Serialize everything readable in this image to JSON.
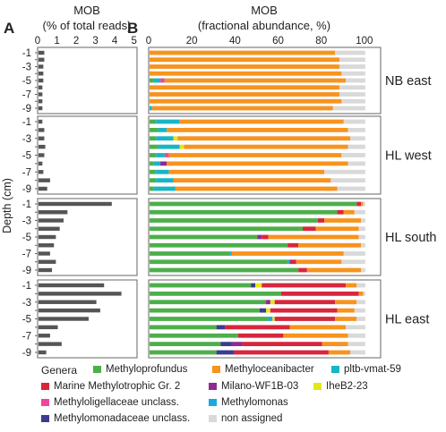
{
  "panel_a": {
    "letter": "A",
    "title_line1": "MOB",
    "title_line2": "(% of total reads)"
  },
  "panel_b": {
    "letter": "B",
    "title_line1": "MOB",
    "title_line2": "(fractional abundance, %)"
  },
  "y_axis_label": "Depth (cm)",
  "legend_title": "Genera",
  "colors": {
    "Methyloprofundus": "#4daf4a",
    "Methyloceanibacter": "#f7931e",
    "pltb-vmat-59": "#17b5c6",
    "Marine Methylotrophic Gr. 2": "#d7263d",
    "Milano-WF1B-03": "#8e2b8f",
    "IheB2-23": "#e5e619",
    "Methyloligellaceae unclass.": "#ec4899",
    "Methylomonas": "#1ba9e0",
    "Methylomonadaceae unclass.": "#3b3b8f",
    "non assigned": "#d9d9d9",
    "bar_a": "#555555"
  },
  "chart_data": [
    {
      "type": "bar",
      "orientation": "horizontal",
      "panel": "A",
      "title": "MOB (% of total reads)",
      "xlim": [
        0,
        5
      ],
      "xticks": [
        0,
        1,
        2,
        3,
        4,
        5
      ],
      "ylabel": "Depth (cm)",
      "yticks": [
        "-1",
        "-3",
        "-5",
        "-7",
        "-9"
      ],
      "groups": [
        {
          "name": "NB east",
          "values": [
            0.3,
            0.3,
            0.25,
            0.25,
            0.25,
            0.2,
            0.2,
            0.2,
            0.2
          ]
        },
        {
          "name": "HL west",
          "values": [
            0.2,
            0.3,
            0.3,
            0.35,
            0.3,
            0.2,
            0.25,
            0.6,
            0.45
          ]
        },
        {
          "name": "HL south",
          "values": [
            3.8,
            1.5,
            1.3,
            1.1,
            0.9,
            0.8,
            0.6,
            0.9,
            0.7
          ]
        },
        {
          "name": "HL east",
          "values": [
            3.4,
            4.3,
            3.0,
            3.2,
            2.6,
            1.0,
            0.6,
            1.2,
            0.4
          ]
        }
      ]
    },
    {
      "type": "bar",
      "orientation": "horizontal",
      "stacked": true,
      "panel": "B",
      "title": "MOB (fractional abundance, %)",
      "xlim": [
        0,
        100
      ],
      "xticks": [
        0,
        20,
        40,
        60,
        80,
        100
      ],
      "yticks": [
        "-1",
        "-3",
        "-5",
        "-7",
        "-9"
      ],
      "series_names": [
        "Methyloprofundus",
        "pltb-vmat-59",
        "Methylomonas",
        "Methylomonadaceae unclass.",
        "Milano-WF1B-03",
        "Methyloligellaceae unclass.",
        "IheB2-23",
        "Marine Methylotrophic Gr. 2",
        "Methyloceanibacter",
        "non assigned"
      ],
      "groups": [
        {
          "name": "NB east",
          "rows": [
            [
              0,
              0,
              0,
              0,
              0,
              0,
              0,
              0,
              86,
              14
            ],
            [
              0,
              0,
              0,
              0,
              0,
              0,
              0,
              0,
              88,
              12
            ],
            [
              0,
              0,
              0,
              0,
              0,
              0,
              0,
              0,
              88,
              12
            ],
            [
              0,
              0,
              0,
              0,
              0,
              0,
              0,
              0,
              89,
              11
            ],
            [
              2,
              3,
              0,
              0,
              0,
              2,
              0,
              0,
              84,
              9
            ],
            [
              0,
              0,
              0,
              0,
              0,
              0,
              0,
              0,
              88,
              12
            ],
            [
              0,
              0,
              0,
              0,
              0,
              0,
              0,
              0,
              88,
              12
            ],
            [
              0,
              0,
              0,
              0,
              0,
              0,
              0,
              0,
              89,
              11
            ],
            [
              0,
              1,
              0,
              0,
              0,
              0,
              0,
              0,
              84,
              15
            ]
          ]
        },
        {
          "name": "HL west",
          "rows": [
            [
              3,
              11,
              0,
              0,
              0,
              0,
              0,
              0,
              76,
              10
            ],
            [
              4,
              4,
              0,
              0,
              0,
              0,
              0,
              0,
              84,
              8
            ],
            [
              3,
              8,
              0,
              0,
              0,
              0,
              2,
              0,
              80,
              7
            ],
            [
              4,
              10,
              0,
              0,
              0,
              0,
              2,
              0,
              76,
              8
            ],
            [
              3,
              4,
              0,
              0,
              0,
              2,
              0,
              0,
              80,
              11
            ],
            [
              2,
              3,
              0,
              0,
              3,
              0,
              0,
              0,
              84,
              8
            ],
            [
              3,
              6,
              0,
              0,
              0,
              0,
              0,
              0,
              72,
              19
            ],
            [
              3,
              8,
              0,
              0,
              0,
              0,
              0,
              0,
              73,
              16
            ],
            [
              2,
              10,
              0,
              0,
              0,
              0,
              0,
              0,
              75,
              13
            ]
          ]
        },
        {
          "name": "HL south",
          "rows": [
            [
              96,
              0,
              0,
              0,
              0,
              0,
              0,
              2,
              1,
              1
            ],
            [
              87,
              0,
              0,
              0,
              0,
              0,
              0,
              3,
              5,
              5
            ],
            [
              78,
              0,
              0,
              0,
              0,
              0,
              0,
              3,
              17,
              2
            ],
            [
              71,
              0,
              0,
              0,
              0,
              0,
              0,
              6,
              20,
              3
            ],
            [
              50,
              0,
              0,
              0,
              2,
              0,
              0,
              3,
              42,
              3
            ],
            [
              64,
              0,
              0,
              0,
              0,
              0,
              0,
              5,
              29,
              2
            ],
            [
              37,
              0,
              1,
              0,
              0,
              0,
              0,
              0,
              52,
              10
            ],
            [
              64,
              0,
              1,
              0,
              0,
              0,
              0,
              3,
              21,
              11
            ],
            [
              69,
              0,
              0,
              0,
              0,
              0,
              0,
              4,
              25,
              2
            ]
          ]
        },
        {
          "name": "HL east",
          "rows": [
            [
              47,
              0,
              0,
              2,
              0,
              0,
              3,
              39,
              5,
              4
            ],
            [
              61,
              0,
              0,
              0,
              0,
              0,
              0,
              36,
              2,
              1
            ],
            [
              54,
              0,
              0,
              0,
              2,
              0,
              2,
              28,
              10,
              4
            ],
            [
              51,
              0,
              0,
              3,
              0,
              0,
              2,
              31,
              8,
              5
            ],
            [
              55,
              0,
              2,
              0,
              0,
              0,
              1,
              28,
              10,
              4
            ],
            [
              31,
              0,
              0,
              4,
              0,
              0,
              0,
              30,
              26,
              9
            ],
            [
              41,
              0,
              0,
              0,
              0,
              0,
              0,
              21,
              30,
              8
            ],
            [
              33,
              0,
              0,
              5,
              5,
              0,
              0,
              37,
              12,
              8
            ],
            [
              31,
              0,
              0,
              8,
              0,
              0,
              0,
              44,
              10,
              7
            ]
          ]
        }
      ]
    }
  ],
  "legend_items": [
    {
      "label": "Methyloprofundus",
      "color_key": "Methyloprofundus"
    },
    {
      "label": "Methyloceanibacter",
      "color_key": "Methyloceanibacter"
    },
    {
      "label": "pltb-vmat-59",
      "color_key": "pltb-vmat-59"
    },
    {
      "label": "Marine Methylotrophic Gr. 2",
      "color_key": "Marine Methylotrophic Gr. 2"
    },
    {
      "label": "Milano-WF1B-03",
      "color_key": "Milano-WF1B-03"
    },
    {
      "label": "IheB2-23",
      "color_key": "IheB2-23"
    },
    {
      "label": "Methyloligellaceae unclass.",
      "color_key": "Methyloligellaceae unclass."
    },
    {
      "label": "Methylomonas",
      "color_key": "Methylomonas"
    },
    {
      "label": "Methylomonadaceae unclass.",
      "color_key": "Methylomonadaceae unclass."
    },
    {
      "label": "non assigned",
      "color_key": "non assigned"
    }
  ]
}
